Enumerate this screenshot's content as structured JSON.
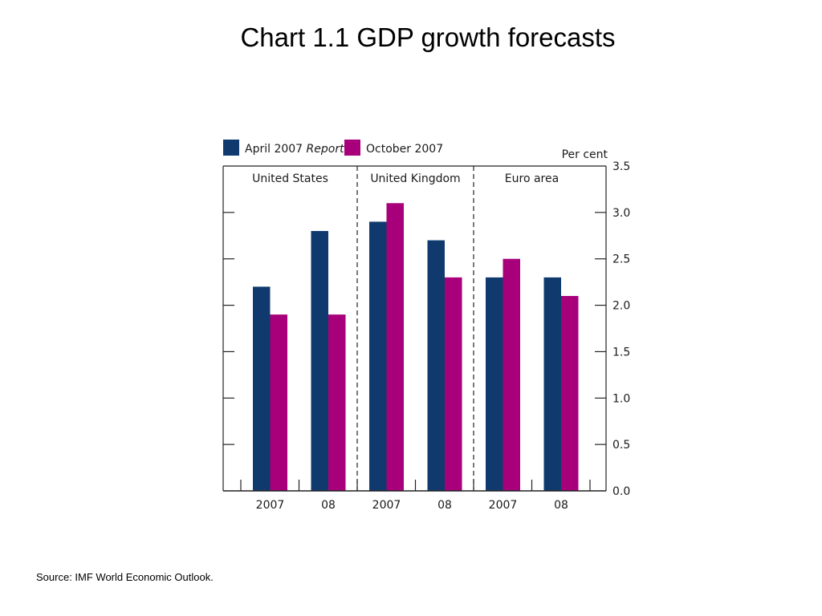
{
  "page": {
    "title": "Chart 1.1  GDP growth forecasts",
    "source": "Source:  IMF World Economic Outlook."
  },
  "chart_data": {
    "type": "bar",
    "ylabel": "Per cent",
    "ylim": [
      0,
      3.5
    ],
    "yticks": [
      "0.0",
      "0.5",
      "1.0",
      "1.5",
      "2.0",
      "2.5",
      "3.0",
      "3.5"
    ],
    "legend_position": "top-left",
    "groups": [
      {
        "name": "United States",
        "categories": [
          "2007",
          "08"
        ]
      },
      {
        "name": "United Kingdom",
        "categories": [
          "2007",
          "08"
        ]
      },
      {
        "name": "Euro area",
        "categories": [
          "2007",
          "08"
        ]
      }
    ],
    "categories": [
      "2007",
      "08",
      "2007",
      "08",
      "2007",
      "08"
    ],
    "series": [
      {
        "name": "April 2007",
        "name_italic": "Report",
        "color": "#103A6E",
        "values": [
          2.2,
          2.8,
          2.9,
          2.7,
          2.3,
          2.3
        ]
      },
      {
        "name": "October 2007",
        "color": "#A8007A",
        "values": [
          1.9,
          1.9,
          3.1,
          2.3,
          2.5,
          2.1
        ]
      }
    ]
  }
}
